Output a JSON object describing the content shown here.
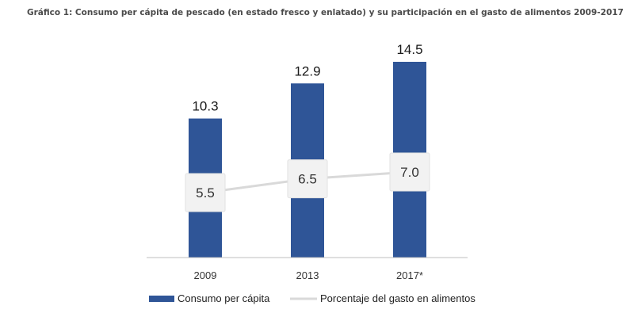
{
  "header": {
    "title": "Gráfico 1: Consumo per cápita de pescado (en estado fresco y enlatado) y su participación en el gasto de alimentos 2009-2017"
  },
  "colors": {
    "bar": "#2F5597",
    "line": "#D9D9D9",
    "label_box": "#F2F2F2",
    "axis": "#BFBFBF"
  },
  "chart_data": {
    "type": "bar",
    "title": "Gráfico 1: Consumo per cápita de pescado (en estado fresco y enlatado) y su participación en el gasto de alimentos 2009-2017",
    "categories": [
      "2009",
      "2013",
      "2017*"
    ],
    "series": [
      {
        "name": "Consumo per cápita",
        "type": "bar",
        "values": [
          10.3,
          12.9,
          14.5
        ],
        "labels": [
          "10.3",
          "12.9",
          "14.5"
        ]
      },
      {
        "name": "Porcentaje del gasto en alimentos",
        "type": "line",
        "values": [
          5.5,
          6.5,
          7.0
        ],
        "labels": [
          "5.5",
          "6.5",
          "7.0"
        ]
      }
    ],
    "bar_ylim": [
      0,
      16
    ],
    "line_ylim": [
      0,
      16
    ],
    "grid": false,
    "legend": "bottom-left"
  }
}
